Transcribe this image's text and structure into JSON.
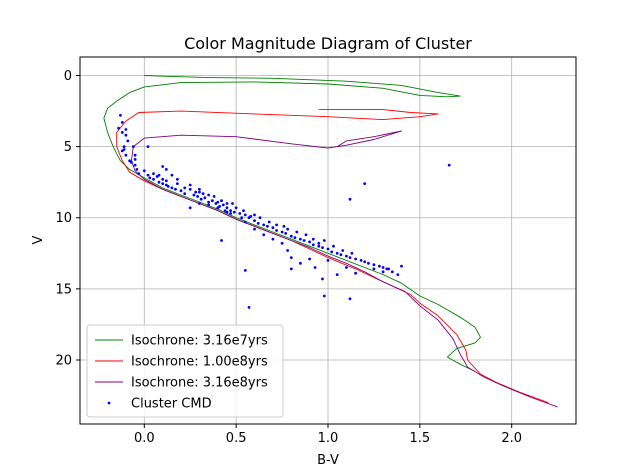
{
  "chart_data": {
    "type": "scatter",
    "title": "Color Magnitude Diagram of Cluster",
    "xlabel": "B-V",
    "ylabel": "V",
    "xlim": [
      -0.35,
      2.35
    ],
    "ylim": [
      24.5,
      -1.3
    ],
    "y_inverted": true,
    "grid": true,
    "legend_position": "lower-left",
    "xticks": [
      0.0,
      0.5,
      1.0,
      1.5,
      2.0
    ],
    "xtick_labels": [
      "0.0",
      "0.5",
      "1.0",
      "1.5",
      "2.0"
    ],
    "yticks": [
      0,
      5,
      10,
      15,
      20
    ],
    "ytick_labels": [
      "0",
      "5",
      "10",
      "15",
      "20"
    ],
    "colors": {
      "iso1": "#008000",
      "iso2": "#ff0000",
      "iso3": "#800080",
      "points": "#0000ff"
    },
    "series": [
      {
        "name": "Isochrone: 3.16e7yrs",
        "kind": "line",
        "color": "#008000",
        "points": [
          [
            1.8,
            20.8
          ],
          [
            1.72,
            20.3
          ],
          [
            1.65,
            19.8
          ],
          [
            1.7,
            19.2
          ],
          [
            1.8,
            18.8
          ],
          [
            1.83,
            18.4
          ],
          [
            1.8,
            17.7
          ],
          [
            1.72,
            17.0
          ],
          [
            1.6,
            16.1
          ],
          [
            1.5,
            15.5
          ],
          [
            1.4,
            14.6
          ],
          [
            1.3,
            14.0
          ],
          [
            1.2,
            13.5
          ],
          [
            1.1,
            13.0
          ],
          [
            1.0,
            12.5
          ],
          [
            0.9,
            12.0
          ],
          [
            0.8,
            11.5
          ],
          [
            0.7,
            11.0
          ],
          [
            0.6,
            10.5
          ],
          [
            0.5,
            10.0
          ],
          [
            0.4,
            9.4
          ],
          [
            0.3,
            8.9
          ],
          [
            0.2,
            8.4
          ],
          [
            0.1,
            7.9
          ],
          [
            0.0,
            7.2
          ],
          [
            -0.08,
            6.6
          ],
          [
            -0.13,
            6.0
          ],
          [
            -0.17,
            5.0
          ],
          [
            -0.2,
            4.0
          ],
          [
            -0.22,
            3.0
          ],
          [
            -0.2,
            2.3
          ],
          [
            -0.15,
            1.8
          ],
          [
            -0.08,
            1.2
          ],
          [
            0.0,
            0.8
          ],
          [
            0.2,
            0.5
          ],
          [
            0.6,
            0.45
          ],
          [
            1.0,
            0.6
          ],
          [
            1.3,
            0.9
          ],
          [
            1.5,
            1.4
          ],
          [
            1.65,
            1.5
          ],
          [
            1.72,
            1.45
          ],
          [
            1.6,
            1.2
          ],
          [
            1.4,
            0.7
          ],
          [
            1.1,
            0.4
          ],
          [
            0.7,
            0.2
          ],
          [
            0.35,
            0.15
          ],
          [
            0.1,
            0.05
          ],
          [
            0.0,
            0.0
          ]
        ]
      },
      {
        "name": "Isochrone: 1.00e8yrs",
        "kind": "line",
        "color": "#ff0000",
        "points": [
          [
            2.2,
            23.0
          ],
          [
            2.05,
            22.3
          ],
          [
            1.92,
            21.6
          ],
          [
            1.83,
            21.0
          ],
          [
            1.76,
            20.0
          ],
          [
            1.75,
            19.3
          ],
          [
            1.7,
            18.2
          ],
          [
            1.6,
            16.9
          ],
          [
            1.5,
            16.0
          ],
          [
            1.45,
            15.4
          ],
          [
            1.35,
            14.8
          ],
          [
            1.25,
            14.2
          ],
          [
            1.15,
            13.6
          ],
          [
            1.0,
            12.8
          ],
          [
            0.9,
            12.2
          ],
          [
            0.8,
            11.6
          ],
          [
            0.7,
            11.1
          ],
          [
            0.6,
            10.6
          ],
          [
            0.5,
            10.1
          ],
          [
            0.4,
            9.5
          ],
          [
            0.3,
            9.0
          ],
          [
            0.2,
            8.5
          ],
          [
            0.1,
            8.0
          ],
          [
            0.0,
            7.4
          ],
          [
            -0.08,
            6.8
          ],
          [
            -0.12,
            6.0
          ],
          [
            -0.15,
            5.0
          ],
          [
            -0.15,
            4.0
          ],
          [
            -0.1,
            3.2
          ],
          [
            -0.03,
            2.6
          ],
          [
            0.2,
            2.5
          ],
          [
            0.6,
            2.7
          ],
          [
            1.0,
            2.9
          ],
          [
            1.3,
            3.1
          ],
          [
            1.5,
            2.9
          ],
          [
            1.6,
            2.7
          ],
          [
            1.45,
            2.6
          ],
          [
            1.3,
            2.4
          ],
          [
            1.1,
            2.4
          ],
          [
            0.95,
            2.4
          ]
        ]
      },
      {
        "name": "Isochrone: 3.16e8yrs",
        "kind": "line",
        "color": "#800080",
        "points": [
          [
            2.25,
            23.3
          ],
          [
            2.1,
            22.6
          ],
          [
            1.95,
            21.8
          ],
          [
            1.85,
            21.2
          ],
          [
            1.76,
            20.5
          ],
          [
            1.72,
            19.6
          ],
          [
            1.68,
            18.5
          ],
          [
            1.6,
            17.2
          ],
          [
            1.5,
            16.2
          ],
          [
            1.42,
            15.2
          ],
          [
            1.3,
            14.5
          ],
          [
            1.2,
            13.8
          ],
          [
            1.1,
            13.2
          ],
          [
            1.0,
            12.7
          ],
          [
            0.9,
            12.1
          ],
          [
            0.8,
            11.6
          ],
          [
            0.7,
            11.1
          ],
          [
            0.6,
            10.6
          ],
          [
            0.5,
            10.1
          ],
          [
            0.4,
            9.5
          ],
          [
            0.3,
            9.0
          ],
          [
            0.2,
            8.5
          ],
          [
            0.1,
            8.0
          ],
          [
            0.0,
            7.3
          ],
          [
            -0.05,
            6.7
          ],
          [
            -0.07,
            6.0
          ],
          [
            -0.06,
            5.0
          ],
          [
            0.0,
            4.4
          ],
          [
            0.2,
            4.2
          ],
          [
            0.5,
            4.3
          ],
          [
            0.8,
            4.8
          ],
          [
            1.0,
            5.1
          ],
          [
            1.1,
            4.9
          ],
          [
            1.25,
            4.5
          ],
          [
            1.4,
            3.9
          ],
          [
            1.25,
            4.3
          ],
          [
            1.1,
            4.6
          ],
          [
            1.05,
            5.0
          ]
        ]
      },
      {
        "name": "Cluster CMD",
        "kind": "scatter",
        "color": "#0000ff",
        "points": [
          [
            -0.13,
            2.8
          ],
          [
            -0.12,
            3.3
          ],
          [
            -0.14,
            3.7
          ],
          [
            -0.1,
            3.8
          ],
          [
            -0.1,
            4.2
          ],
          [
            -0.09,
            4.6
          ],
          [
            -0.12,
            5.3
          ],
          [
            -0.1,
            5.6
          ],
          [
            -0.05,
            5.9
          ],
          [
            0.02,
            5.0
          ],
          [
            -0.08,
            6.0
          ],
          [
            -0.05,
            6.3
          ],
          [
            -0.04,
            6.6
          ],
          [
            -0.03,
            6.9
          ],
          [
            0.0,
            6.7
          ],
          [
            0.02,
            7.0
          ],
          [
            0.03,
            7.2
          ],
          [
            0.05,
            7.3
          ],
          [
            0.07,
            7.1
          ],
          [
            0.08,
            7.5
          ],
          [
            0.1,
            7.6
          ],
          [
            0.12,
            7.4
          ],
          [
            0.13,
            7.8
          ],
          [
            0.15,
            7.9
          ],
          [
            0.17,
            8.0
          ],
          [
            0.2,
            8.1
          ],
          [
            0.22,
            8.3
          ],
          [
            0.25,
            8.0
          ],
          [
            0.27,
            8.4
          ],
          [
            0.29,
            8.5
          ],
          [
            0.31,
            8.7
          ],
          [
            0.33,
            8.6
          ],
          [
            0.35,
            8.9
          ],
          [
            0.37,
            8.8
          ],
          [
            0.39,
            9.0
          ],
          [
            0.41,
            9.2
          ],
          [
            0.43,
            9.1
          ],
          [
            0.45,
            9.3
          ],
          [
            0.47,
            9.5
          ],
          [
            0.49,
            9.6
          ],
          [
            0.52,
            9.7
          ],
          [
            0.55,
            9.8
          ],
          [
            0.57,
            10.0
          ],
          [
            0.6,
            10.2
          ],
          [
            0.62,
            10.4
          ],
          [
            0.65,
            10.5
          ],
          [
            0.67,
            10.6
          ],
          [
            0.7,
            10.7
          ],
          [
            0.72,
            10.9
          ],
          [
            0.75,
            11.0
          ],
          [
            0.77,
            11.1
          ],
          [
            0.8,
            11.3
          ],
          [
            0.82,
            11.4
          ],
          [
            0.85,
            11.5
          ],
          [
            0.87,
            11.6
          ],
          [
            0.9,
            11.7
          ],
          [
            0.92,
            11.9
          ],
          [
            0.95,
            12.0
          ],
          [
            0.97,
            12.1
          ],
          [
            1.0,
            12.2
          ],
          [
            1.02,
            12.4
          ],
          [
            1.05,
            12.5
          ],
          [
            1.07,
            12.6
          ],
          [
            1.1,
            12.7
          ],
          [
            1.12,
            12.8
          ],
          [
            1.15,
            12.9
          ],
          [
            1.18,
            13.0
          ],
          [
            1.2,
            13.1
          ],
          [
            1.22,
            13.2
          ],
          [
            1.25,
            13.3
          ],
          [
            1.28,
            13.4
          ],
          [
            1.3,
            13.5
          ],
          [
            1.33,
            13.6
          ],
          [
            1.35,
            13.8
          ],
          [
            0.1,
            6.4
          ],
          [
            0.12,
            6.6
          ],
          [
            0.15,
            7.0
          ],
          [
            0.18,
            7.3
          ],
          [
            0.25,
            7.7
          ],
          [
            0.3,
            8.0
          ],
          [
            0.32,
            8.3
          ],
          [
            0.38,
            8.5
          ],
          [
            0.42,
            8.8
          ],
          [
            0.45,
            9.0
          ],
          [
            0.48,
            9.0
          ],
          [
            0.5,
            9.3
          ],
          [
            0.54,
            9.5
          ],
          [
            0.58,
            9.9
          ],
          [
            0.6,
            9.8
          ],
          [
            0.63,
            10.0
          ],
          [
            0.68,
            10.3
          ],
          [
            0.72,
            10.5
          ],
          [
            0.76,
            10.6
          ],
          [
            0.78,
            10.8
          ],
          [
            0.83,
            11.0
          ],
          [
            0.88,
            11.2
          ],
          [
            0.92,
            11.5
          ],
          [
            0.95,
            11.8
          ],
          [
            0.98,
            11.6
          ],
          [
            1.03,
            12.0
          ],
          [
            1.08,
            12.3
          ],
          [
            1.13,
            12.5
          ],
          [
            0.7,
            11.5
          ],
          [
            0.75,
            11.8
          ],
          [
            0.78,
            12.3
          ],
          [
            0.8,
            12.8
          ],
          [
            0.85,
            13.2
          ],
          [
            0.9,
            12.9
          ],
          [
            0.93,
            13.5
          ],
          [
            0.97,
            14.3
          ],
          [
            1.0,
            13.0
          ],
          [
            1.05,
            14.0
          ],
          [
            1.1,
            13.5
          ],
          [
            1.15,
            13.9
          ],
          [
            0.55,
            13.7
          ],
          [
            0.57,
            16.3
          ],
          [
            0.98,
            15.5
          ],
          [
            1.12,
            15.7
          ],
          [
            0.42,
            11.6
          ],
          [
            1.12,
            8.7
          ],
          [
            1.2,
            7.6
          ],
          [
            1.66,
            6.3
          ],
          [
            1.4,
            13.4
          ],
          [
            0.8,
            13.6
          ],
          [
            0.6,
            10.8
          ],
          [
            0.65,
            11.2
          ],
          [
            0.3,
            8.2
          ],
          [
            0.35,
            8.4
          ],
          [
            0.4,
            8.9
          ],
          [
            0.44,
            9.5
          ],
          [
            0.47,
            9.7
          ],
          [
            0.53,
            10.0
          ],
          [
            0.55,
            10.3
          ],
          [
            -0.05,
            5.6
          ],
          [
            0.05,
            6.9
          ],
          [
            0.08,
            7.0
          ],
          [
            0.1,
            7.3
          ],
          [
            0.12,
            7.7
          ],
          [
            0.18,
            7.6
          ],
          [
            0.22,
            7.9
          ],
          [
            0.28,
            8.2
          ],
          [
            1.25,
            13.6
          ],
          [
            1.3,
            13.8
          ],
          [
            1.32,
            13.6
          ],
          [
            1.38,
            14.0
          ],
          [
            0.25,
            9.3
          ],
          [
            0.3,
            9.0
          ],
          [
            0.35,
            9.1
          ],
          [
            0.4,
            9.3
          ],
          [
            0.45,
            9.6
          ],
          [
            -0.12,
            4.0
          ],
          [
            -0.11,
            5.0
          ],
          [
            -0.11,
            5.2
          ],
          [
            -0.06,
            5.0
          ],
          [
            -0.07,
            6.1
          ]
        ]
      }
    ]
  }
}
